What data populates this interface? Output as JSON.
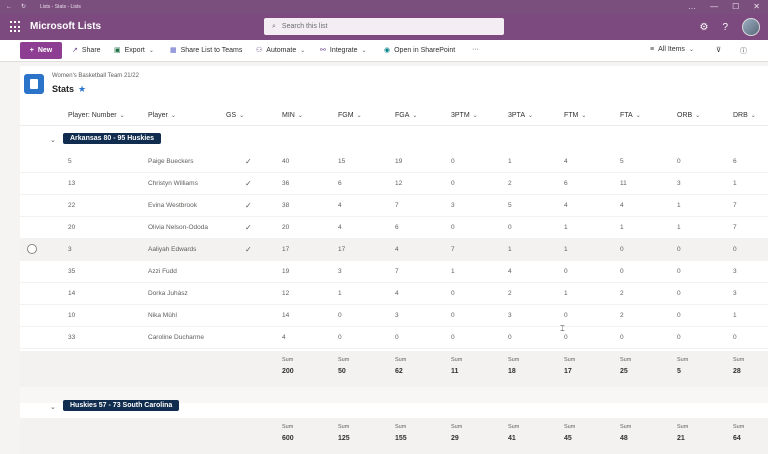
{
  "browser": {
    "tab_title": "Lists - Stats - Lists",
    "controls": [
      "…",
      "—",
      "☐",
      "✕"
    ]
  },
  "suite": {
    "app_name": "Microsoft Lists",
    "search_placeholder": "Search this list"
  },
  "commands": {
    "new": "New",
    "share": "Share",
    "export": "Export",
    "share_teams": "Share List to Teams",
    "automate": "Automate",
    "integrate": "Integrate",
    "open_sharepoint": "Open in SharePoint",
    "more": "···",
    "view": "All Items"
  },
  "list": {
    "subtitle": "Women's Basketball Team 21/22",
    "title": "Stats"
  },
  "columns": [
    "Player: Number",
    "Player",
    "GS",
    "MIN",
    "FGM",
    "FGA",
    "3PTM",
    "3PTA",
    "FTM",
    "FTA",
    "ORB",
    "DRB"
  ],
  "groups": [
    {
      "label": "Arkansas 80 - 95 Huskies",
      "rows": [
        {
          "num": "5",
          "player": "Paige Bueckers",
          "gs": true,
          "stats": [
            "40",
            "15",
            "19",
            "0",
            "1",
            "4",
            "5",
            "0",
            "6"
          ]
        },
        {
          "num": "13",
          "player": "Christyn Williams",
          "gs": true,
          "stats": [
            "36",
            "6",
            "12",
            "0",
            "2",
            "6",
            "11",
            "3",
            "1"
          ]
        },
        {
          "num": "22",
          "player": "Evina Westbrook",
          "gs": true,
          "stats": [
            "38",
            "4",
            "7",
            "3",
            "5",
            "4",
            "4",
            "1",
            "7"
          ]
        },
        {
          "num": "20",
          "player": "Olivia Nelson-Ododa",
          "gs": true,
          "stats": [
            "20",
            "4",
            "6",
            "0",
            "0",
            "1",
            "1",
            "1",
            "7"
          ]
        },
        {
          "num": "3",
          "player": "Aaliyah Edwards",
          "gs": true,
          "stats": [
            "17",
            "17",
            "4",
            "7",
            "1",
            "1",
            "0",
            "0",
            "0"
          ]
        },
        {
          "num": "35",
          "player": "Azzi Fudd",
          "gs": false,
          "stats": [
            "19",
            "3",
            "7",
            "1",
            "4",
            "0",
            "0",
            "0",
            "3"
          ]
        },
        {
          "num": "14",
          "player": "Dorka Juhász",
          "gs": false,
          "stats": [
            "12",
            "1",
            "4",
            "0",
            "2",
            "1",
            "2",
            "0",
            "3"
          ]
        },
        {
          "num": "10",
          "player": "Nika Mühl",
          "gs": false,
          "stats": [
            "14",
            "0",
            "3",
            "0",
            "3",
            "0",
            "2",
            "0",
            "1"
          ]
        },
        {
          "num": "33",
          "player": "Caroline Ducharme",
          "gs": false,
          "stats": [
            "4",
            "0",
            "0",
            "0",
            "0",
            "0",
            "0",
            "0",
            "0"
          ]
        }
      ],
      "sum_label": "Sum",
      "sums": [
        "200",
        "50",
        "62",
        "11",
        "18",
        "17",
        "25",
        "5",
        "28"
      ]
    },
    {
      "label": "Huskies 57 - 73 South Carolina",
      "rows": [],
      "sum_label": "Sum",
      "sums": [
        "600",
        "125",
        "155",
        "29",
        "41",
        "45",
        "48",
        "21",
        "64"
      ]
    }
  ],
  "colors": {
    "suite_bar": "#7d4a7f",
    "new_button": "#8e3e92",
    "group_badge": "#102c4e",
    "list_icon": "#2b74c9"
  }
}
